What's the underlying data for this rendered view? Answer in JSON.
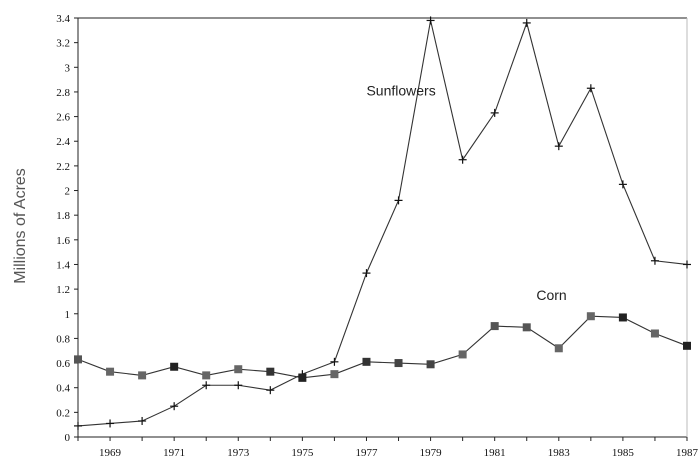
{
  "chart_data": {
    "type": "line",
    "title": "",
    "xlabel": "",
    "ylabel": "Millions of Acres",
    "x": [
      1968,
      1969,
      1970,
      1971,
      1972,
      1973,
      1974,
      1975,
      1976,
      1977,
      1978,
      1979,
      1980,
      1981,
      1982,
      1983,
      1984,
      1985,
      1986,
      1987
    ],
    "xlim": [
      1968,
      1987
    ],
    "ylim": [
      0,
      3.4
    ],
    "x_tick_labels": [
      "1969",
      "1971",
      "1973",
      "1975",
      "1977",
      "1979",
      "1981",
      "1983",
      "1985",
      "1987"
    ],
    "y_tick_labels": [
      "0",
      "0.2",
      "0.4",
      "0.6",
      "0.8",
      "1",
      "1.2",
      "1.4",
      "1.6",
      "1.8",
      "2",
      "2.2",
      "2.4",
      "2.6",
      "2.8",
      "3",
      "3.2",
      "3.4"
    ],
    "grid": false,
    "legend": "none",
    "annotations": [
      {
        "text": "Sunflowers",
        "x": 1977,
        "y": 2.77
      },
      {
        "text": "Corn",
        "x": 1982.3,
        "y": 1.11
      }
    ],
    "series": [
      {
        "name": "Sunflowers",
        "marker": "plus",
        "color": "#333333",
        "values": [
          0.09,
          0.11,
          0.13,
          0.25,
          0.42,
          0.42,
          0.38,
          0.51,
          0.61,
          1.33,
          1.92,
          3.38,
          2.25,
          2.63,
          3.36,
          2.36,
          2.83,
          2.05,
          1.43,
          1.4
        ]
      },
      {
        "name": "Corn",
        "marker": "square",
        "color": "#333333",
        "marker_colors": [
          "#555555",
          "#666666",
          "#666666",
          "#222222",
          "#666666",
          "#666666",
          "#333333",
          "#222222",
          "#666666",
          "#333333",
          "#444444",
          "#444444",
          "#666666",
          "#555555",
          "#555555",
          "#666666",
          "#666666",
          "#222222",
          "#666666",
          "#222222"
        ],
        "values": [
          0.63,
          0.53,
          0.5,
          0.57,
          0.5,
          0.55,
          0.53,
          0.48,
          0.51,
          0.61,
          0.6,
          0.59,
          0.67,
          0.9,
          0.89,
          0.72,
          0.98,
          0.97,
          0.84,
          0.74
        ]
      }
    ]
  }
}
